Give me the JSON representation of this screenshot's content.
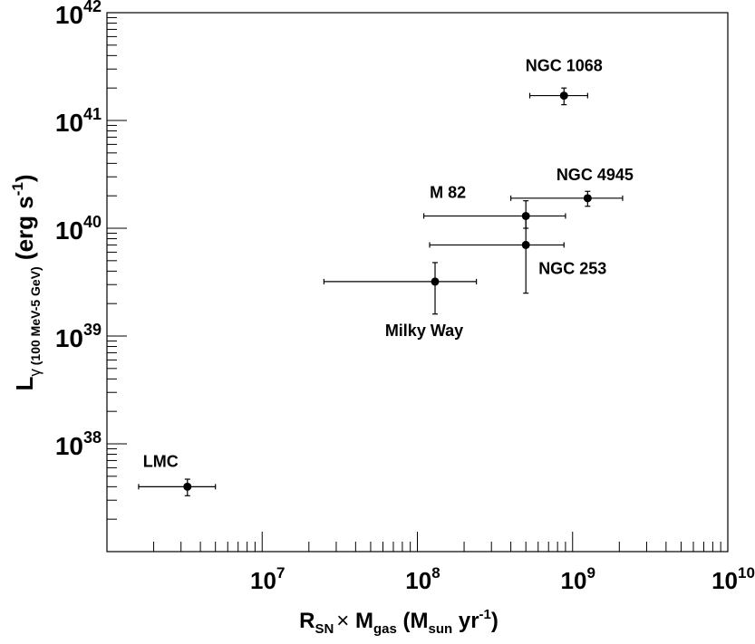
{
  "chart_data": {
    "type": "scatter",
    "xscale": "log",
    "yscale": "log",
    "xlim": [
      1000000,
      10000000000
    ],
    "ylim": [
      1e+37,
      1e+42
    ],
    "grid": false,
    "x_ticks": [
      {
        "value": 10000000,
        "base": "10",
        "exp": "7"
      },
      {
        "value": 100000000,
        "base": "10",
        "exp": "8"
      },
      {
        "value": 1000000000,
        "base": "10",
        "exp": "9"
      },
      {
        "value": 10000000000,
        "base": "10",
        "exp": "10"
      }
    ],
    "y_ticks": [
      {
        "value": 1e+38,
        "base": "10",
        "exp": "38"
      },
      {
        "value": 1e+39,
        "base": "10",
        "exp": "39"
      },
      {
        "value": 1e+40,
        "base": "10",
        "exp": "40"
      },
      {
        "value": 1e+41,
        "base": "10",
        "exp": "41"
      },
      {
        "value": 1e+42,
        "base": "10",
        "exp": "42"
      }
    ],
    "xlabel": {
      "p1": "R",
      "s1": "SN",
      "times": "×",
      "p2": " M",
      "s2": "gas",
      "p3": " (M",
      "s3": "sun",
      "p4": " yr",
      "sup": "-1",
      "p5": ")"
    },
    "ylabel": {
      "main": "L",
      "sub_gamma": "γ",
      "sub_range": " (100 MeV-5 GeV)",
      "units": " (erg s",
      "sup": "-1",
      "close": ")"
    },
    "points": [
      {
        "name": "LMC",
        "x": 3300000,
        "y": 4e+37,
        "xerr": [
          1600000,
          5000000
        ],
        "yerr": [
          3.3e+37,
          4.7e+37
        ]
      },
      {
        "name": "Milky Way",
        "x": 130000000,
        "y": 3.2e+39,
        "xerr": [
          25000000,
          240000000
        ],
        "yerr": [
          1.6e+39,
          4.8e+39
        ]
      },
      {
        "name": "NGC 253",
        "x": 500000000,
        "y": 7e+39,
        "xerr": [
          120000000,
          880000000
        ],
        "yerr": [
          2.5e+39,
          1.3e+40
        ]
      },
      {
        "name": "M 82",
        "x": 500000000,
        "y": 1.3e+40,
        "xerr": [
          110000000,
          900000000
        ],
        "yerr": [
          1e+40,
          1.8e+40
        ]
      },
      {
        "name": "NGC 4945",
        "x": 1250000000,
        "y": 1.9e+40,
        "xerr": [
          400000000,
          2100000000
        ],
        "yerr": [
          1.6e+40,
          2.2e+40
        ]
      },
      {
        "name": "NGC 1068",
        "x": 880000000,
        "y": 1.7e+41,
        "xerr": [
          530000000,
          1250000000
        ],
        "yerr": [
          1.4e+41,
          2e+41
        ]
      }
    ]
  }
}
